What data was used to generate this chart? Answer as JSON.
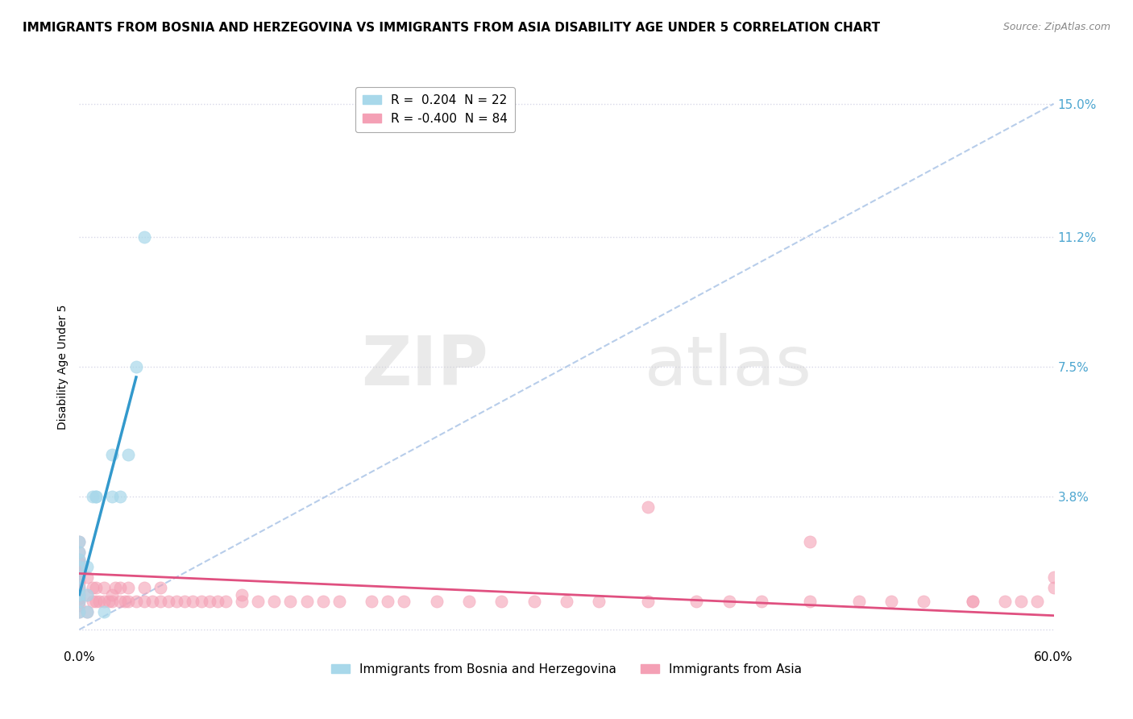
{
  "title": "IMMIGRANTS FROM BOSNIA AND HERZEGOVINA VS IMMIGRANTS FROM ASIA DISABILITY AGE UNDER 5 CORRELATION CHART",
  "source": "Source: ZipAtlas.com",
  "ylabel": "Disability Age Under 5",
  "xlim": [
    0.0,
    0.6
  ],
  "ylim": [
    -0.005,
    0.155
  ],
  "yticks": [
    0.0,
    0.038,
    0.075,
    0.112,
    0.15
  ],
  "ytick_labels": [
    "",
    "3.8%",
    "7.5%",
    "11.2%",
    "15.0%"
  ],
  "xtick_labels": [
    "0.0%",
    "60.0%"
  ],
  "legend_entries": [
    {
      "label": "R =  0.204  N = 22",
      "color": "#a8d8ea"
    },
    {
      "label": "R = -0.400  N = 84",
      "color": "#f4a0b5"
    }
  ],
  "legend_bottom": [
    "Immigrants from Bosnia and Herzegovina",
    "Immigrants from Asia"
  ],
  "watermark_zip": "ZIP",
  "watermark_atlas": "atlas",
  "diagonal_line_x": [
    0.0,
    0.6
  ],
  "diagonal_line_y": [
    0.0,
    0.15
  ],
  "bosnia_scatter_x": [
    0.0,
    0.0,
    0.0,
    0.0,
    0.0,
    0.0,
    0.0,
    0.0,
    0.0,
    0.005,
    0.005,
    0.005,
    0.008,
    0.01,
    0.01,
    0.015,
    0.02,
    0.02,
    0.025,
    0.03,
    0.035,
    0.04
  ],
  "bosnia_scatter_y": [
    0.005,
    0.008,
    0.01,
    0.012,
    0.015,
    0.018,
    0.02,
    0.022,
    0.025,
    0.005,
    0.01,
    0.018,
    0.038,
    0.038,
    0.038,
    0.005,
    0.038,
    0.05,
    0.038,
    0.05,
    0.075,
    0.112
  ],
  "asia_scatter_x": [
    0.0,
    0.0,
    0.0,
    0.0,
    0.0,
    0.0,
    0.0,
    0.0,
    0.0,
    0.0,
    0.0,
    0.0,
    0.0,
    0.0,
    0.0,
    0.0,
    0.0,
    0.005,
    0.005,
    0.005,
    0.008,
    0.008,
    0.01,
    0.01,
    0.012,
    0.015,
    0.015,
    0.018,
    0.02,
    0.02,
    0.022,
    0.025,
    0.025,
    0.028,
    0.03,
    0.03,
    0.035,
    0.04,
    0.04,
    0.045,
    0.05,
    0.05,
    0.055,
    0.06,
    0.065,
    0.07,
    0.075,
    0.08,
    0.085,
    0.09,
    0.1,
    0.1,
    0.11,
    0.12,
    0.13,
    0.14,
    0.15,
    0.16,
    0.18,
    0.19,
    0.2,
    0.22,
    0.24,
    0.26,
    0.28,
    0.3,
    0.32,
    0.35,
    0.38,
    0.4,
    0.42,
    0.45,
    0.48,
    0.5,
    0.52,
    0.55,
    0.57,
    0.58,
    0.59,
    0.6,
    0.35,
    0.45,
    0.55,
    0.6
  ],
  "asia_scatter_y": [
    0.005,
    0.007,
    0.008,
    0.009,
    0.01,
    0.011,
    0.012,
    0.013,
    0.014,
    0.015,
    0.016,
    0.017,
    0.018,
    0.019,
    0.02,
    0.022,
    0.025,
    0.005,
    0.01,
    0.015,
    0.008,
    0.012,
    0.008,
    0.012,
    0.008,
    0.008,
    0.012,
    0.008,
    0.008,
    0.01,
    0.012,
    0.008,
    0.012,
    0.008,
    0.008,
    0.012,
    0.008,
    0.008,
    0.012,
    0.008,
    0.008,
    0.012,
    0.008,
    0.008,
    0.008,
    0.008,
    0.008,
    0.008,
    0.008,
    0.008,
    0.008,
    0.01,
    0.008,
    0.008,
    0.008,
    0.008,
    0.008,
    0.008,
    0.008,
    0.008,
    0.008,
    0.008,
    0.008,
    0.008,
    0.008,
    0.008,
    0.008,
    0.008,
    0.008,
    0.008,
    0.008,
    0.008,
    0.008,
    0.008,
    0.008,
    0.008,
    0.008,
    0.008,
    0.008,
    0.012,
    0.035,
    0.025,
    0.008,
    0.015
  ],
  "bosnia_line_x": [
    0.0,
    0.035
  ],
  "bosnia_line_y": [
    0.01,
    0.072
  ],
  "asia_line_x": [
    0.0,
    0.6
  ],
  "asia_line_y": [
    0.016,
    0.004
  ],
  "bosnia_color": "#a8d8ea",
  "asia_color": "#f4a0b5",
  "bosnia_line_color": "#3399cc",
  "asia_line_color": "#e05080",
  "background_color": "#ffffff",
  "grid_color": "#d8d8e8",
  "title_fontsize": 11,
  "diagonal_color": "#b0c8e8",
  "tick_label_color_right": "#4da6d0"
}
